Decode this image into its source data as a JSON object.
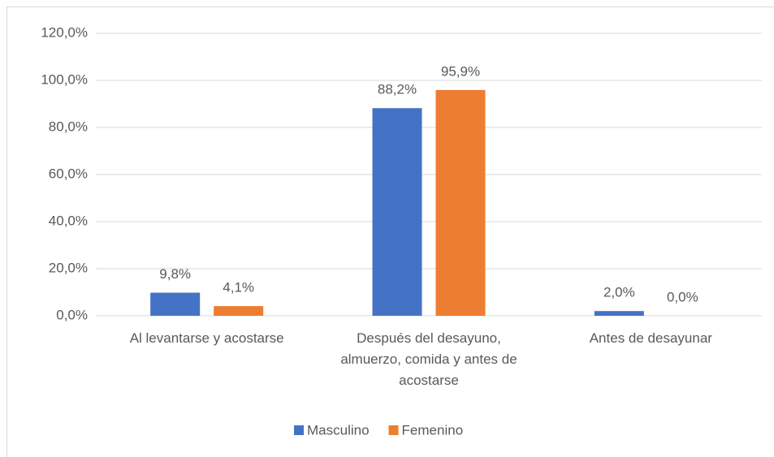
{
  "chart_data": {
    "type": "bar",
    "categories": [
      "Al levantarse y acostarse",
      "Después del desayuno, almuerzo, comida y antes de acostarse",
      "Antes de desayunar"
    ],
    "series": [
      {
        "name": "Masculino",
        "color": "#4472c4",
        "values": [
          9.8,
          88.2,
          2.0
        ],
        "value_labels": [
          "9,8%",
          "88,2%",
          "2,0%"
        ]
      },
      {
        "name": "Femenino",
        "color": "#ed7d31",
        "values": [
          4.1,
          95.9,
          0.0
        ],
        "value_labels": [
          "4,1%",
          "95,9%",
          "0,0%"
        ]
      }
    ],
    "ylim": [
      0,
      120
    ],
    "yticks": [
      {
        "value": 0,
        "label": "0,0%"
      },
      {
        "value": 20,
        "label": "20,0%"
      },
      {
        "value": 40,
        "label": "40,0%"
      },
      {
        "value": 60,
        "label": "60,0%"
      },
      {
        "value": 80,
        "label": "80,0%"
      },
      {
        "value": 100,
        "label": "100,0%"
      },
      {
        "value": 120,
        "label": "120,0%"
      }
    ],
    "grid": true,
    "legend": "bottom"
  }
}
